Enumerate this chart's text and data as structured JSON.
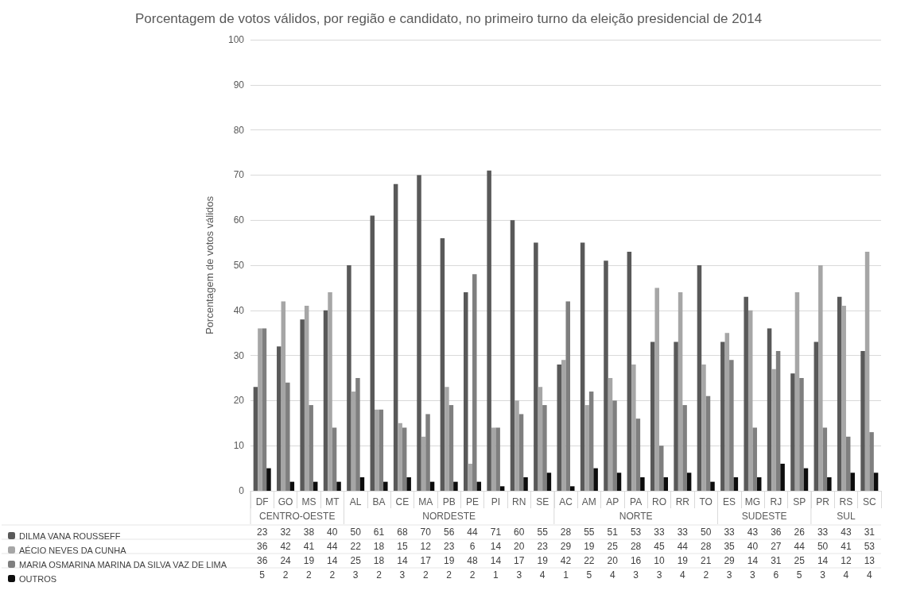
{
  "chart_data": {
    "type": "bar",
    "title": "Porcentagem de votos válidos, por região e candidato, no primeiro turno da eleição presidencial de 2014",
    "ylabel": "Porcentagem de votos válidos",
    "categories": [
      "DF",
      "GO",
      "MS",
      "MT",
      "AL",
      "BA",
      "CE",
      "MA",
      "PB",
      "PE",
      "PI",
      "RN",
      "SE",
      "AC",
      "AM",
      "AP",
      "PA",
      "RO",
      "RR",
      "TO",
      "ES",
      "MG",
      "RJ",
      "SP",
      "PR",
      "RS",
      "SC"
    ],
    "annotations": [
      "CENTRO-OESTE",
      "NORDESTE",
      "NORTE",
      "SUDESTE",
      "SUL"
    ],
    "series": [
      {
        "name": "DILMA VANA ROUSSEFF",
        "color": "#595959",
        "values": [
          23,
          32,
          38,
          40,
          50,
          61,
          68,
          70,
          56,
          44,
          71,
          60,
          55,
          28,
          55,
          51,
          53,
          33,
          33,
          50,
          33,
          43,
          36,
          26,
          33,
          43,
          31
        ]
      },
      {
        "name": "AÉCIO NEVES DA CUNHA",
        "color": "#a6a6a6",
        "values": [
          36,
          42,
          41,
          44,
          22,
          18,
          15,
          12,
          23,
          6,
          14,
          20,
          23,
          29,
          19,
          25,
          28,
          45,
          44,
          28,
          35,
          40,
          27,
          44,
          50,
          41,
          53
        ]
      },
      {
        "name": "MARIA OSMARINA MARINA DA SILVA VAZ DE LIMA",
        "color": "#7f7f7f",
        "values": [
          36,
          24,
          19,
          14,
          25,
          18,
          14,
          17,
          19,
          48,
          14,
          17,
          19,
          42,
          22,
          20,
          16,
          10,
          19,
          21,
          29,
          14,
          31,
          25,
          14,
          12,
          13
        ]
      },
      {
        "name": "OUTROS",
        "color": "#0d0d0d",
        "values": [
          5,
          2,
          2,
          2,
          3,
          2,
          3,
          2,
          2,
          2,
          1,
          3,
          4,
          1,
          5,
          4,
          3,
          3,
          4,
          2,
          3,
          3,
          6,
          5,
          3,
          4,
          4
        ]
      }
    ],
    "ylim": [
      0,
      100
    ],
    "yticks": [
      0,
      10,
      20,
      30,
      40,
      50,
      60,
      70,
      80,
      90,
      100
    ],
    "grid": "y",
    "legend": "bottom left",
    "data_labels": true
  }
}
